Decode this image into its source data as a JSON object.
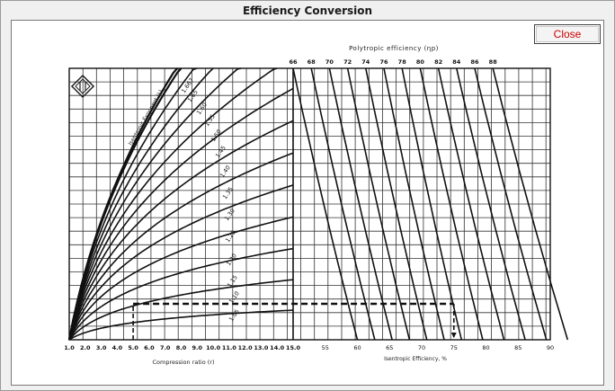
{
  "window": {
    "title": "Efficiency Conversion",
    "close_label": "Close"
  },
  "chart_data": {
    "type": "line",
    "title": "",
    "left_panel": {
      "xlabel": "Compression ratio (r)",
      "x_ticks": [
        "1.0",
        "2.0",
        "3.0",
        "4.0",
        "5.0",
        "6.0",
        "7.0",
        "8.0",
        "9.0",
        "10.0",
        "11.0",
        "12.0",
        "13.0",
        "14.0",
        "15.0"
      ],
      "curve_family_label": "Isentropic Exponent (k)",
      "k_values": [
        "1.667",
        "1.65",
        "1.60",
        "1.55",
        "1.50",
        "1.45",
        "1.40",
        "1.35",
        "1.30",
        "1.25",
        "1.20",
        "1.15",
        "1.10",
        "1.05"
      ]
    },
    "right_panel": {
      "top_label": "Polytropic efficiency (ηp)",
      "top_ticks": [
        "66",
        "68",
        "70",
        "72",
        "74",
        "76",
        "78",
        "80",
        "82",
        "84",
        "86",
        "88"
      ],
      "xlabel": "Isentropic Efficiency, %",
      "x_ticks": [
        "55",
        "60",
        "65",
        "70",
        "75",
        "80",
        "85",
        "90"
      ]
    },
    "example_path": {
      "compression_ratio": 5.0,
      "isentropic_exponent": 1.1,
      "isentropic_efficiency": 75
    },
    "grid": true
  }
}
